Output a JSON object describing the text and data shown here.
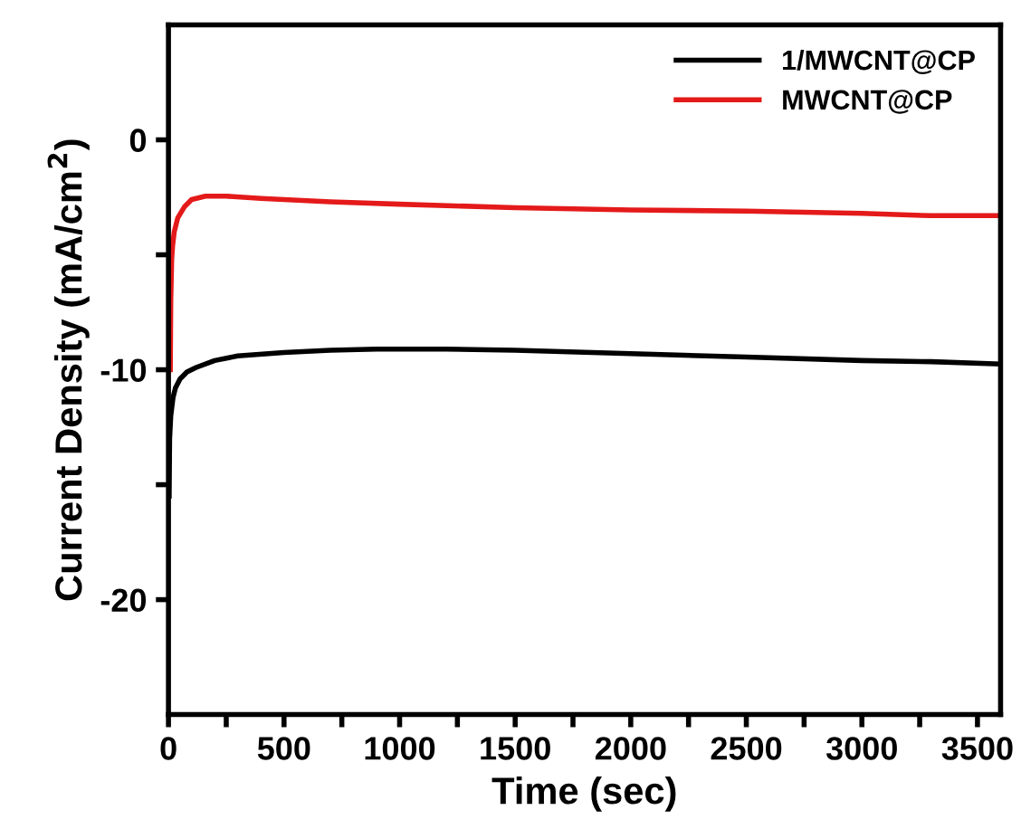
{
  "chart_data": {
    "type": "line",
    "xlabel": "Time (sec)",
    "ylabel": "Current Density (mA/cm$^{2}$)",
    "xlim": [
      0,
      3600
    ],
    "ylim": [
      -25,
      5
    ],
    "xticks": [
      0,
      {
        "value": 250,
        "label": null
      },
      500,
      {
        "value": 750,
        "label": null
      },
      1000,
      {
        "value": 1250,
        "label": null
      },
      1500,
      {
        "value": 1750,
        "label": null
      },
      2000,
      {
        "value": 2250,
        "label": null
      },
      2500,
      {
        "value": 2750,
        "label": null
      },
      3000,
      {
        "value": 3250,
        "label": null
      },
      3500
    ],
    "yticks": [
      {
        "value": 0,
        "label": "0"
      },
      {
        "value": -5,
        "label": null
      },
      {
        "value": -10,
        "label": "-10"
      },
      {
        "value": -15,
        "label": null
      },
      {
        "value": -20,
        "label": "-20"
      }
    ],
    "grid": false,
    "legend": "top right",
    "marker": "none",
    "line_style": "solid",
    "series": [
      {
        "name": "1/MWCNT@CP",
        "color": "#000000",
        "x": [
          3,
          5,
          10,
          20,
          30,
          50,
          80,
          120,
          200,
          300,
          500,
          700,
          900,
          1200,
          1500,
          2000,
          2500,
          3000,
          3300,
          3600
        ],
        "values": [
          -15.5,
          -13,
          -12,
          -11.2,
          -10.8,
          -10.4,
          -10.1,
          -9.9,
          -9.6,
          -9.4,
          -9.25,
          -9.15,
          -9.1,
          -9.1,
          -9.15,
          -9.3,
          -9.45,
          -9.6,
          -9.65,
          -9.75
        ]
      },
      {
        "name": "MWCNT@CP",
        "color": "#e41a1a",
        "x": [
          8,
          10,
          14,
          18,
          25,
          40,
          70,
          100,
          160,
          250,
          400,
          700,
          1000,
          1500,
          2000,
          2500,
          3000,
          3300,
          3600
        ],
        "values": [
          -10,
          -7,
          -5.2,
          -4.6,
          -4,
          -3.4,
          -2.9,
          -2.6,
          -2.45,
          -2.45,
          -2.55,
          -2.7,
          -2.8,
          -2.95,
          -3.05,
          -3.1,
          -3.2,
          -3.3,
          -3.3
        ]
      }
    ]
  }
}
